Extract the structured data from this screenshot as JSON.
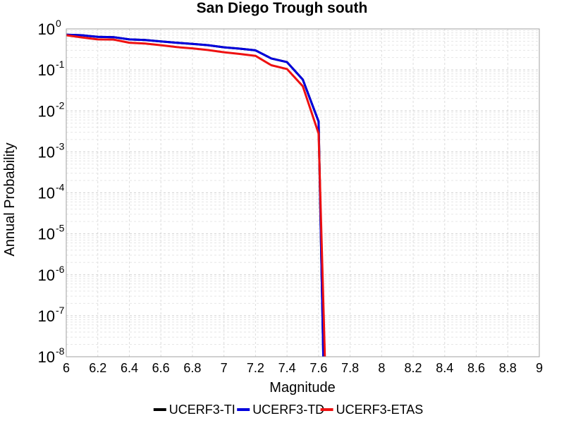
{
  "chart_data": {
    "type": "line",
    "title": "San Diego Trough south",
    "xlabel": "Magnitude",
    "ylabel": "Annual Probability",
    "xlim": [
      6,
      9
    ],
    "ylim": [
      1e-08,
      1
    ],
    "yscale": "log",
    "grid": true,
    "legend_position": "bottom",
    "x_ticks": [
      "6",
      "6.2",
      "6.4",
      "6.6",
      "6.8",
      "7",
      "7.2",
      "7.4",
      "7.6",
      "7.8",
      "8",
      "8.2",
      "8.4",
      "8.6",
      "8.8",
      "9"
    ],
    "y_ticks": [
      {
        "base": "10",
        "exp": "-8"
      },
      {
        "base": "10",
        "exp": "-7"
      },
      {
        "base": "10",
        "exp": "-6"
      },
      {
        "base": "10",
        "exp": "-5"
      },
      {
        "base": "10",
        "exp": "-4"
      },
      {
        "base": "10",
        "exp": "-3"
      },
      {
        "base": "10",
        "exp": "-2"
      },
      {
        "base": "10",
        "exp": "-1"
      },
      {
        "base": "10",
        "exp": "0"
      }
    ],
    "series": [
      {
        "name": "UCERF3-TI",
        "color": "#000000",
        "x": [
          6.0,
          6.1,
          6.2,
          6.3,
          6.4,
          6.5,
          6.6,
          6.7,
          6.8,
          6.9,
          7.0,
          7.1,
          7.2,
          7.3,
          7.4,
          7.5,
          7.6,
          7.63
        ],
        "y": [
          0.72,
          0.7,
          0.64,
          0.63,
          0.555,
          0.535,
          0.495,
          0.46,
          0.43,
          0.4,
          0.355,
          0.33,
          0.3,
          0.19,
          0.155,
          0.058,
          0.0055,
          1e-08
        ]
      },
      {
        "name": "UCERF3-TD",
        "color": "#0000dd",
        "x": [
          6.0,
          6.1,
          6.2,
          6.3,
          6.4,
          6.5,
          6.6,
          6.7,
          6.8,
          6.9,
          7.0,
          7.1,
          7.2,
          7.3,
          7.4,
          7.5,
          7.6,
          7.63
        ],
        "y": [
          0.72,
          0.7,
          0.64,
          0.63,
          0.555,
          0.535,
          0.495,
          0.46,
          0.43,
          0.4,
          0.355,
          0.33,
          0.3,
          0.19,
          0.155,
          0.058,
          0.0055,
          1e-08
        ]
      },
      {
        "name": "UCERF3-ETAS",
        "color": "#ee1111",
        "x": [
          6.0,
          6.1,
          6.2,
          6.3,
          6.4,
          6.5,
          6.6,
          6.7,
          6.8,
          6.9,
          7.0,
          7.1,
          7.2,
          7.3,
          7.4,
          7.5,
          7.6,
          7.64
        ],
        "y": [
          0.7,
          0.62,
          0.555,
          0.55,
          0.46,
          0.44,
          0.4,
          0.36,
          0.335,
          0.305,
          0.27,
          0.245,
          0.22,
          0.13,
          0.105,
          0.04,
          0.0028,
          1e-08
        ]
      }
    ]
  }
}
